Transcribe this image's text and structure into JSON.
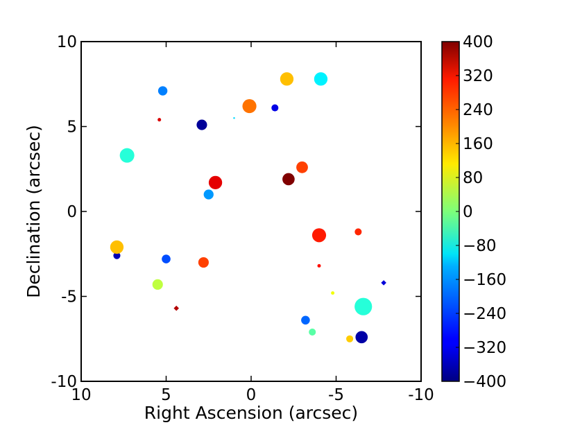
{
  "chart_data": {
    "type": "scatter",
    "xlabel": "Right Ascension (arcsec)",
    "ylabel": "Declination (arcsec)",
    "xlim": [
      10,
      -10
    ],
    "ylim": [
      -10,
      10
    ],
    "xticks": [
      10,
      5,
      0,
      -5,
      -10
    ],
    "xtick_labels": [
      "10",
      "5",
      "0",
      "-5",
      "-10"
    ],
    "yticks": [
      -10,
      -5,
      0,
      5,
      10
    ],
    "ytick_labels": [
      "-10",
      "-5",
      "0",
      "5",
      "10"
    ],
    "grid": false,
    "colorbar": {
      "range": [
        -400,
        400
      ],
      "ticks": [
        400,
        320,
        240,
        160,
        80,
        0,
        -80,
        -160,
        -240,
        -320,
        -400
      ],
      "tick_labels": [
        "400",
        "320",
        "240",
        "160",
        "80",
        "0",
        "−80",
        "−160",
        "−240",
        "−320",
        "−400"
      ],
      "colormap": "jet"
    },
    "points": [
      {
        "ra": 5.2,
        "dec": 7.1,
        "value": -200,
        "size": 1.6
      },
      {
        "ra": -2.1,
        "dec": 7.8,
        "value": 150,
        "size": 2.3
      },
      {
        "ra": -4.1,
        "dec": 7.8,
        "value": -110,
        "size": 2.3
      },
      {
        "ra": 0.1,
        "dec": 6.2,
        "value": 210,
        "size": 2.4
      },
      {
        "ra": -1.4,
        "dec": 6.1,
        "value": -320,
        "size": 1.2
      },
      {
        "ra": 5.4,
        "dec": 5.4,
        "value": 330,
        "size": 0.6
      },
      {
        "ra": 2.9,
        "dec": 5.1,
        "value": -380,
        "size": 1.8
      },
      {
        "ra": 1.0,
        "dec": 5.5,
        "value": -130,
        "size": 0.3
      },
      {
        "ra": 7.3,
        "dec": 3.3,
        "value": -70,
        "size": 2.5
      },
      {
        "ra": -3.0,
        "dec": 2.6,
        "value": 250,
        "size": 2.0
      },
      {
        "ra": -2.2,
        "dec": 1.9,
        "value": 400,
        "size": 2.1
      },
      {
        "ra": 2.1,
        "dec": 1.7,
        "value": 320,
        "size": 2.3
      },
      {
        "ra": 2.5,
        "dec": 1.0,
        "value": -180,
        "size": 1.7
      },
      {
        "ra": -6.3,
        "dec": -1.2,
        "value": 270,
        "size": 1.2
      },
      {
        "ra": -4.0,
        "dec": -1.4,
        "value": 280,
        "size": 2.4
      },
      {
        "ra": 7.9,
        "dec": -2.6,
        "value": -360,
        "size": 1.2
      },
      {
        "ra": 7.9,
        "dec": -2.1,
        "value": 150,
        "size": 2.3
      },
      {
        "ra": 5.0,
        "dec": -2.8,
        "value": -240,
        "size": 1.5
      },
      {
        "ra": 2.8,
        "dec": -3.0,
        "value": 250,
        "size": 1.8
      },
      {
        "ra": -4.0,
        "dec": -3.2,
        "value": 290,
        "size": 0.6
      },
      {
        "ra": 5.5,
        "dec": -4.3,
        "value": 50,
        "size": 1.8
      },
      {
        "ra": -4.8,
        "dec": -4.8,
        "value": 90,
        "size": 0.6
      },
      {
        "ra": -7.8,
        "dec": -4.2,
        "value": -330,
        "size": 0.9,
        "marker": "diamond"
      },
      {
        "ra": 4.4,
        "dec": -5.7,
        "value": 360,
        "size": 0.9,
        "marker": "diamond"
      },
      {
        "ra": -6.6,
        "dec": -5.6,
        "value": -70,
        "size": 3.0
      },
      {
        "ra": -3.2,
        "dec": -6.4,
        "value": -220,
        "size": 1.5
      },
      {
        "ra": -3.6,
        "dec": -7.1,
        "value": -30,
        "size": 1.2
      },
      {
        "ra": -5.8,
        "dec": -7.5,
        "value": 140,
        "size": 1.2
      },
      {
        "ra": -6.5,
        "dec": -7.4,
        "value": -370,
        "size": 2.1
      }
    ]
  }
}
